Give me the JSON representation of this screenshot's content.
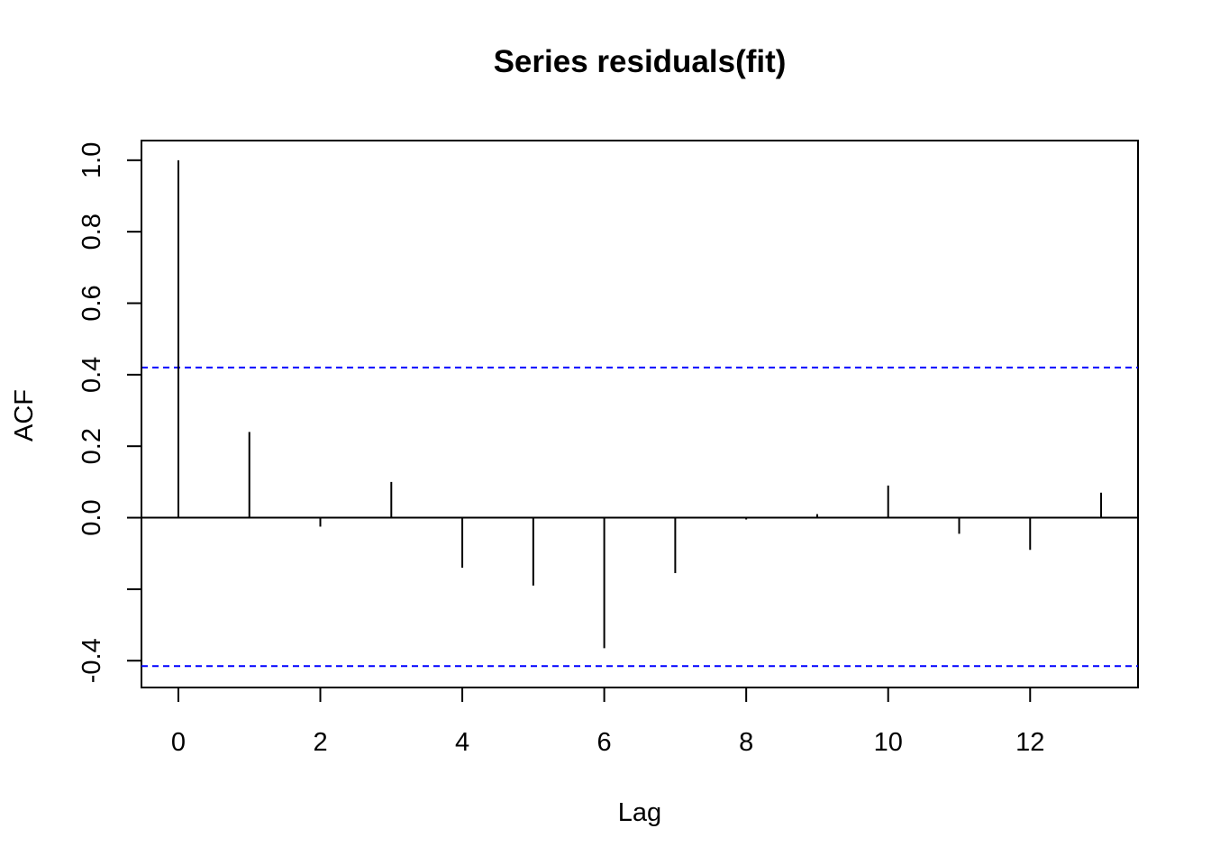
{
  "chart_data": {
    "type": "bar",
    "title": "Series  residuals(fit)",
    "xlabel": "Lag",
    "ylabel": "ACF",
    "x": [
      0,
      1,
      2,
      3,
      4,
      5,
      6,
      7,
      8,
      9,
      10,
      11,
      12,
      13
    ],
    "values": [
      1.0,
      0.24,
      -0.025,
      0.1,
      -0.14,
      -0.19,
      -0.365,
      -0.155,
      -0.005,
      0.01,
      0.09,
      -0.045,
      -0.09,
      0.07
    ],
    "confidence_bounds": [
      0.42,
      -0.415
    ],
    "confidence_color": "#0000ff",
    "xlim": [
      -0.52,
      13.52
    ],
    "ylim": [
      -0.475,
      1.055
    ],
    "x_ticks": [
      0,
      2,
      4,
      6,
      8,
      10,
      12
    ],
    "x_tick_labels": [
      "0",
      "2",
      "4",
      "6",
      "8",
      "10",
      "12"
    ],
    "y_ticks": [
      -0.4,
      -0.2,
      0.0,
      0.2,
      0.4,
      0.6,
      0.8,
      1.0
    ],
    "y_tick_labels": [
      "-0.4",
      "",
      "0.0",
      "0.2",
      "0.4",
      "0.6",
      "0.8",
      "1.0"
    ],
    "grid": false,
    "legend": "none"
  }
}
